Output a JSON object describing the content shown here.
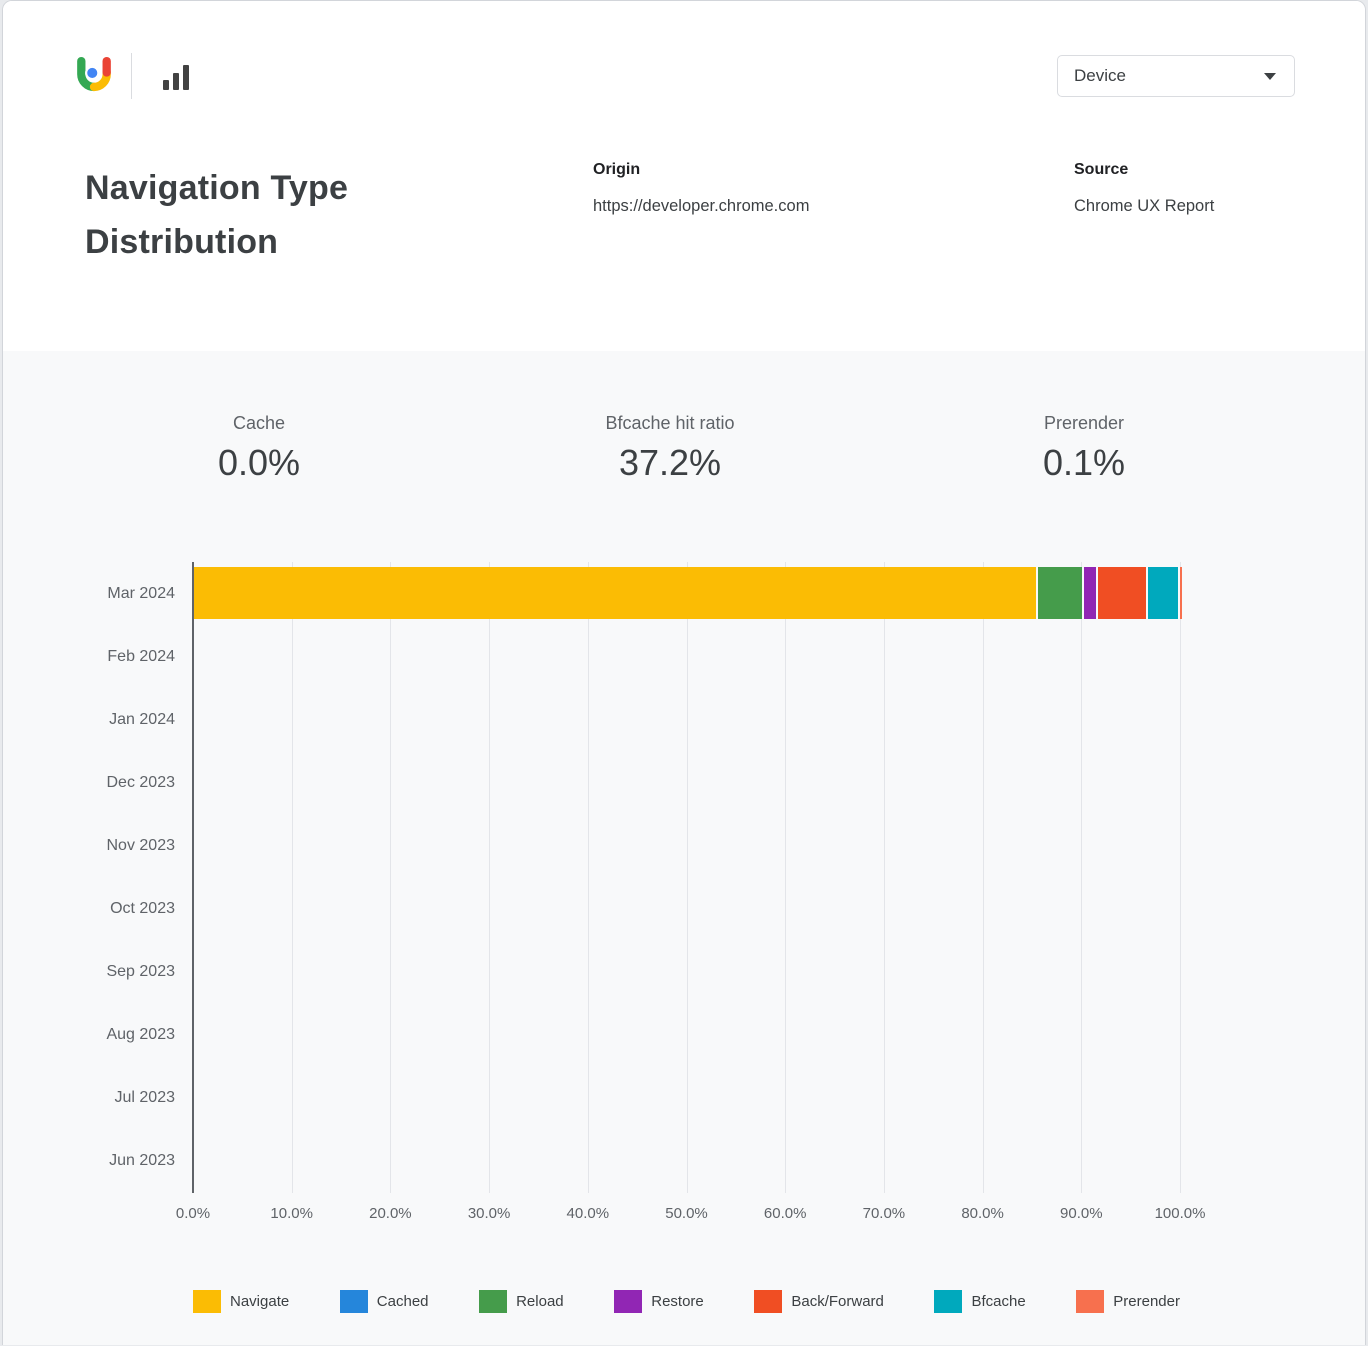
{
  "header": {
    "logo_icon": "crux-logo",
    "toolbar_icon": "bar-chart-icon",
    "device_dropdown": {
      "value": "Device"
    },
    "title": "Navigation Type Distribution",
    "origin": {
      "label": "Origin",
      "value": "https://developer.chrome.com"
    },
    "source": {
      "label": "Source",
      "value": "Chrome UX Report"
    }
  },
  "stats": [
    {
      "label": "Cache",
      "value": "0.0%"
    },
    {
      "label": "Bfcache hit ratio",
      "value": "37.2%"
    },
    {
      "label": "Prerender",
      "value": "0.1%"
    }
  ],
  "chart_data": {
    "type": "bar",
    "orientation": "horizontal",
    "stacked": true,
    "title": "Navigation Type Distribution",
    "categories": [
      "Mar 2024",
      "Feb 2024",
      "Jan 2024",
      "Dec 2023",
      "Nov 2023",
      "Oct 2023",
      "Sep 2023",
      "Aug 2023",
      "Jul 2023",
      "Jun 2023"
    ],
    "series": [
      {
        "name": "Navigate",
        "color": "#FBBC04",
        "values": [
          85.4,
          0,
          0,
          0,
          0,
          0,
          0,
          0,
          0,
          0
        ]
      },
      {
        "name": "Cached",
        "color": "#2586DB",
        "values": [
          0,
          0,
          0,
          0,
          0,
          0,
          0,
          0,
          0,
          0
        ]
      },
      {
        "name": "Reload",
        "color": "#459C4B",
        "values": [
          4.7,
          0,
          0,
          0,
          0,
          0,
          0,
          0,
          0,
          0
        ]
      },
      {
        "name": "Restore",
        "color": "#9126B4",
        "values": [
          1.4,
          0,
          0,
          0,
          0,
          0,
          0,
          0,
          0,
          0
        ]
      },
      {
        "name": "Back/Forward",
        "color": "#F04E23",
        "values": [
          5.1,
          0,
          0,
          0,
          0,
          0,
          0,
          0,
          0,
          0
        ]
      },
      {
        "name": "Bfcache",
        "color": "#00A9BD",
        "values": [
          3.2,
          0,
          0,
          0,
          0,
          0,
          0,
          0,
          0,
          0
        ]
      },
      {
        "name": "Prerender",
        "color": "#F7704E",
        "values": [
          0.2,
          0,
          0,
          0,
          0,
          0,
          0,
          0,
          0,
          0
        ]
      }
    ],
    "x_ticks": [
      "0.0%",
      "10.0%",
      "20.0%",
      "30.0%",
      "40.0%",
      "50.0%",
      "60.0%",
      "70.0%",
      "80.0%",
      "90.0%",
      "100.0%"
    ],
    "xlim": [
      0,
      100
    ],
    "grid": "vertical",
    "legend_position": "bottom"
  }
}
